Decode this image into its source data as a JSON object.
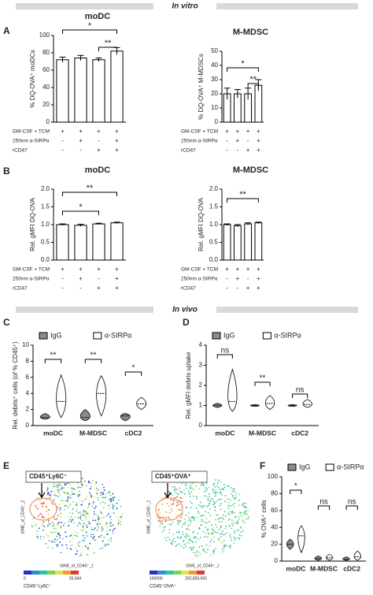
{
  "sections": [
    "In vitro",
    "In vivo"
  ],
  "panel_labels": [
    "A",
    "B",
    "C",
    "D",
    "E",
    "F"
  ],
  "chart_data": [
    {
      "type": "bar",
      "title": "moDC",
      "ylabel": "% DQ-OVA⁺ moDCs",
      "values": [
        72,
        74,
        72,
        82
      ],
      "errors": [
        3,
        3,
        2,
        4
      ],
      "ylim": [
        0,
        100
      ],
      "yticks": [
        0,
        20,
        40,
        60,
        80,
        100
      ],
      "color": "#ffffff",
      "brackets": [
        "*",
        "**"
      ],
      "conditions": [
        {
          "label": "GM-CSF + TCM",
          "marks": [
            "+",
            "+",
            "+",
            "+"
          ]
        },
        {
          "label": "250nm α-SIRPα",
          "marks": [
            "-",
            "+",
            "-",
            "+"
          ]
        },
        {
          "label": "rCD47",
          "marks": [
            "-",
            "-",
            "+",
            "+"
          ]
        }
      ]
    },
    {
      "type": "bar",
      "title": "M-MDSC",
      "ylabel": "% DQ-OVA⁺ M-MDSCs",
      "values": [
        20,
        20,
        20,
        26
      ],
      "errors": [
        4,
        3,
        4,
        4
      ],
      "ylim": [
        0,
        50
      ],
      "yticks": [
        0,
        10,
        20,
        30,
        40,
        50
      ],
      "color": "#ffffff",
      "brackets": [
        "*",
        "**"
      ],
      "conditions": [
        {
          "label": "GM-CSF + TCM",
          "marks": [
            "+",
            "+",
            "+",
            "+"
          ]
        },
        {
          "label": "250nm α-SIRPα",
          "marks": [
            "-",
            "+",
            "-",
            "+"
          ]
        },
        {
          "label": "rCD47",
          "marks": [
            "-",
            "-",
            "+",
            "+"
          ]
        }
      ]
    },
    {
      "type": "bar",
      "title": "moDC",
      "ylabel": "Rel. gMFI DQ-OVA",
      "values": [
        1.0,
        0.98,
        1.02,
        1.05
      ],
      "errors": [
        0.02,
        0.03,
        0.02,
        0.02
      ],
      "ylim": [
        0,
        2
      ],
      "yticks": [
        {
          "value": 0,
          "label": "0.0"
        },
        0.5,
        {
          "value": 1,
          "label": "1.0"
        },
        1.5,
        {
          "value": 2,
          "label": "2.0"
        }
      ],
      "color": "#ffffff",
      "brackets": [
        "**",
        "*"
      ],
      "conditions": [
        {
          "label": "GM-CSF + TCM",
          "marks": [
            "+",
            "+",
            "+",
            "+"
          ]
        },
        {
          "label": "250nm α-SIRPα",
          "marks": [
            "-",
            "+",
            "-",
            "+"
          ]
        },
        {
          "label": "rCD47",
          "marks": [
            "-",
            "-",
            "+",
            "+"
          ]
        }
      ]
    },
    {
      "type": "bar",
      "title": "M-MDSC",
      "ylabel": "Rel. gMFI DQ-OVA",
      "values": [
        1.0,
        0.97,
        1.02,
        1.05
      ],
      "errors": [
        0.02,
        0.03,
        0.03,
        0.02
      ],
      "ylim": [
        0,
        2
      ],
      "yticks": [
        {
          "value": 0,
          "label": "0.0"
        },
        0.5,
        {
          "value": 1,
          "label": "1.0"
        },
        1.5,
        {
          "value": 2,
          "label": "2.0"
        }
      ],
      "color": "#ffffff",
      "brackets": [
        "**"
      ],
      "conditions": [
        {
          "label": "GM-CSF + TCM",
          "marks": [
            "+",
            "+",
            "+",
            "+"
          ]
        },
        {
          "label": "250nm α-SIRPα",
          "marks": [
            "-",
            "+",
            "-",
            "+"
          ]
        },
        {
          "label": "rCD47",
          "marks": [
            "-",
            "-",
            "+",
            "+"
          ]
        }
      ]
    },
    {
      "type": "violin",
      "ylabel": "Rel. debris⁺ cells (of % CD45⁺)",
      "categories": [
        "moDC",
        "M-MDSC",
        "cDC2"
      ],
      "series": [
        {
          "name": "IgG",
          "color": "#8c8c8c",
          "values": [
            1,
            1,
            1.2
          ],
          "min": [
            0.8,
            0.6,
            0.6
          ],
          "max": [
            1.5,
            2.0,
            1.5
          ]
        },
        {
          "name": "α-SIRPα",
          "color": "#ffffff",
          "values": [
            3,
            4,
            2.7
          ],
          "min": [
            1,
            1.2,
            2
          ],
          "max": [
            6.3,
            6.2,
            3.5
          ]
        }
      ],
      "ylim": [
        0,
        10
      ],
      "yticks": [
        0,
        2,
        4,
        6,
        8,
        10
      ],
      "brackets": [
        "**",
        "**",
        "*"
      ]
    },
    {
      "type": "violin",
      "ylabel": "Rel. gMFI debris uptake",
      "categories": [
        "moDC",
        "M-MDSC",
        "cDC2"
      ],
      "series": [
        {
          "name": "IgG",
          "color": "#8c8c8c",
          "values": [
            1,
            1,
            1
          ],
          "min": [
            0.9,
            0.95,
            0.95
          ],
          "max": [
            1.1,
            1.05,
            1.05
          ]
        },
        {
          "name": "α-SIRPα",
          "color": "#ffffff",
          "values": [
            1.2,
            1.1,
            1.05
          ],
          "min": [
            0.7,
            0.8,
            0.9
          ],
          "max": [
            2.8,
            1.5,
            1.3
          ]
        }
      ],
      "ylim": [
        0,
        4
      ],
      "yticks": [
        0,
        1,
        2,
        3,
        4
      ],
      "brackets": [
        "ns",
        "**",
        "ns"
      ]
    },
    {
      "type": "violin",
      "ylabel": "% OVA⁺ cells",
      "categories": [
        "moDC",
        "M-MDSC",
        "cDC2"
      ],
      "series": [
        {
          "name": "IgG",
          "color": "#8c8c8c",
          "values": [
            20,
            3,
            2
          ],
          "min": [
            14,
            1,
            1
          ],
          "max": [
            26,
            6,
            5
          ]
        },
        {
          "name": "α-SIRPα",
          "color": "#ffffff",
          "values": [
            30,
            4,
            5
          ],
          "min": [
            10,
            1,
            1
          ],
          "max": [
            42,
            8,
            12
          ]
        }
      ],
      "ylim": [
        0,
        100
      ],
      "yticks": [
        0,
        20,
        40,
        60,
        80,
        100
      ],
      "brackets": [
        "*",
        "ns",
        "ns"
      ]
    }
  ],
  "tsne": [
    {
      "gate": "CD45⁺Ly6C⁻",
      "xlabel": "tSNE_of_CD45⁺_1",
      "ylabel": "tSNE_of_CD45⁺_2",
      "scale_min": "0",
      "scale_max": "26,344",
      "scale_label": "CD45⁺Ly6C⁻"
    },
    {
      "gate": "CD45⁺OVA⁺",
      "xlabel": "tSNE_of_CD45⁺_1",
      "ylabel": "tSNE_of_CD45⁺_2",
      "scale_min": "100000",
      "scale_max": "262,855.655",
      "scale_label": "CD45⁺OVA⁺"
    }
  ]
}
